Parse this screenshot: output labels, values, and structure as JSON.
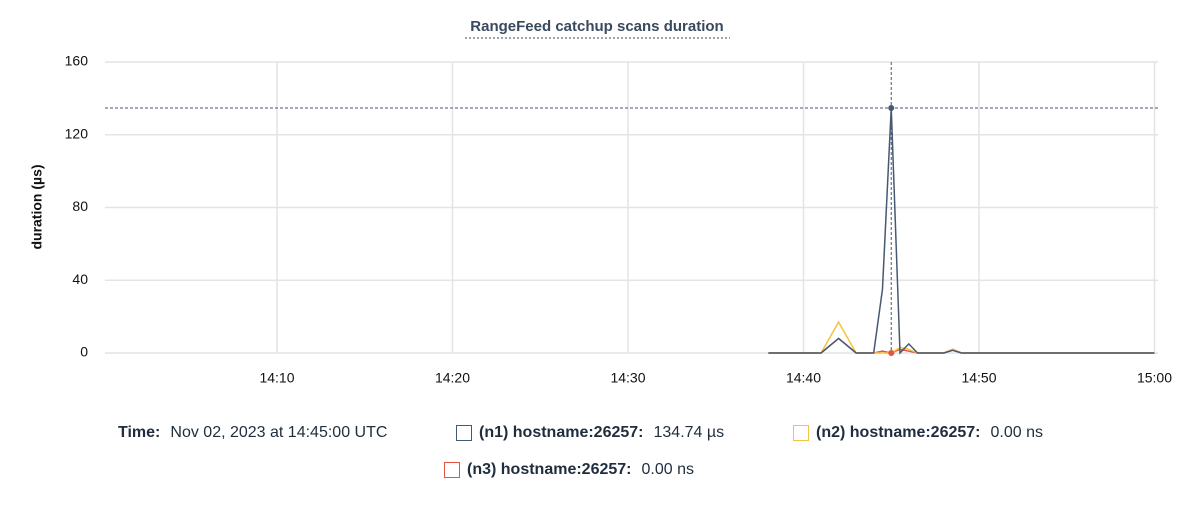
{
  "chart_data": {
    "type": "line",
    "title": "RangeFeed catchup scans duration",
    "y_label": "duration (µs)",
    "x": [
      38,
      41,
      42,
      43,
      44,
      44.5,
      45,
      45.5,
      46,
      46.5,
      47,
      48,
      48.5,
      49,
      60
    ],
    "xlim": [
      0.2,
      60.2
    ],
    "xticks": [
      {
        "value": 10,
        "label": "14:10"
      },
      {
        "value": 20,
        "label": "14:20"
      },
      {
        "value": 30,
        "label": "14:30"
      },
      {
        "value": 40,
        "label": "14:40"
      },
      {
        "value": 50,
        "label": "14:50"
      },
      {
        "value": 60,
        "label": "15:00"
      }
    ],
    "ylim": [
      0,
      160
    ],
    "yticks": [
      0,
      40,
      80,
      120,
      160
    ],
    "grid": true,
    "hover": {
      "label": "Time:",
      "time": "Nov 02, 2023 at 14:45:00 UTC",
      "x": 45
    },
    "series": [
      {
        "name": "(n1) hostname:26257:",
        "color": "#475872",
        "values": [
          0,
          0,
          8,
          0,
          0,
          35,
          134.74,
          0,
          5,
          0,
          0,
          0,
          1.5,
          0,
          0
        ],
        "hover_value": 134.74,
        "hover_label": "134.74 µs"
      },
      {
        "name": "(n2) hostname:26257:",
        "color": "#f5c343",
        "values": [
          0,
          0,
          17,
          0,
          0,
          0,
          0,
          3,
          2,
          0,
          0,
          0,
          2,
          0,
          0
        ],
        "hover_value": 0,
        "hover_label": "0.00 ns"
      },
      {
        "name": "(n3) hostname:26257:",
        "color": "#e5533f",
        "values": [
          0,
          0,
          8,
          0,
          0,
          1,
          0,
          2,
          1,
          0,
          0,
          0,
          2,
          0,
          0
        ],
        "hover_value": 0,
        "hover_label": "0.00 ns"
      }
    ]
  }
}
